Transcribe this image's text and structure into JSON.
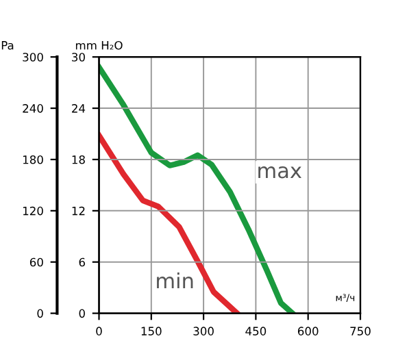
{
  "chart_data": {
    "type": "line",
    "ylabel": "Pa",
    "y2label": "mm H₂O",
    "xlabel": "м³/ч",
    "xlim": [
      0,
      750
    ],
    "xticks": [
      0,
      150,
      300,
      450,
      600,
      750
    ],
    "ylim": [
      0,
      300
    ],
    "yticks": [
      0,
      60,
      120,
      180,
      240,
      300
    ],
    "y2lim": [
      0,
      30
    ],
    "y2ticks": [
      0,
      6,
      12,
      18,
      24,
      30
    ],
    "grid": true,
    "marker": "none",
    "line_style": "solid",
    "series": [
      {
        "color": "#1a9a3e",
        "x": [
          0,
          70,
          150,
          203,
          243,
          283,
          323,
          376,
          429,
          482,
          522,
          555
        ],
        "values": [
          288,
          244,
          188,
          173,
          177,
          185,
          174,
          142,
          98,
          50,
          12,
          0
        ]
      },
      {
        "color": "#e0282e",
        "x": [
          0,
          70,
          126,
          170,
          230,
          283,
          329,
          396
        ],
        "values": [
          208,
          163,
          132,
          125,
          101,
          61,
          25,
          0
        ]
      }
    ],
    "annotations": [
      "max",
      "min"
    ]
  }
}
